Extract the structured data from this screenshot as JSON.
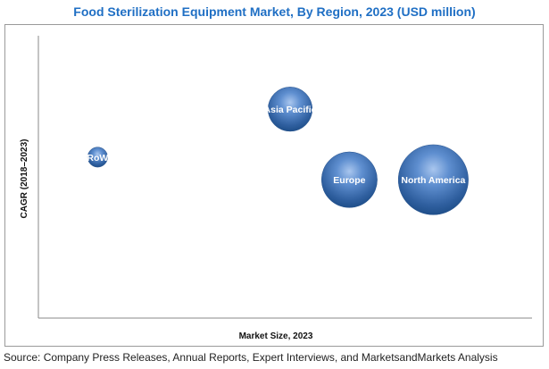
{
  "chart_data": {
    "type": "bubble",
    "title": "Food Sterilization Equipment Market, By Region, 2023 (USD million)",
    "xlabel": "Market Size, 2023",
    "ylabel": "CAGR (2018–2023)",
    "grid": false,
    "x_ticks_shown": false,
    "y_ticks_shown": false,
    "points": [
      {
        "label": "RoW",
        "x": 0.12,
        "y": 0.57,
        "size": 0.28
      },
      {
        "label": "Asia Pacific",
        "x": 0.51,
        "y": 0.74,
        "size": 0.62
      },
      {
        "label": "Europe",
        "x": 0.63,
        "y": 0.49,
        "size": 0.78
      },
      {
        "label": "North America",
        "x": 0.8,
        "y": 0.49,
        "size": 0.98
      }
    ],
    "bubble_color": "#3d6fb0"
  },
  "source": "Source: Company Press Releases, Annual Reports, Expert Interviews, and MarketsandMarkets Analysis"
}
